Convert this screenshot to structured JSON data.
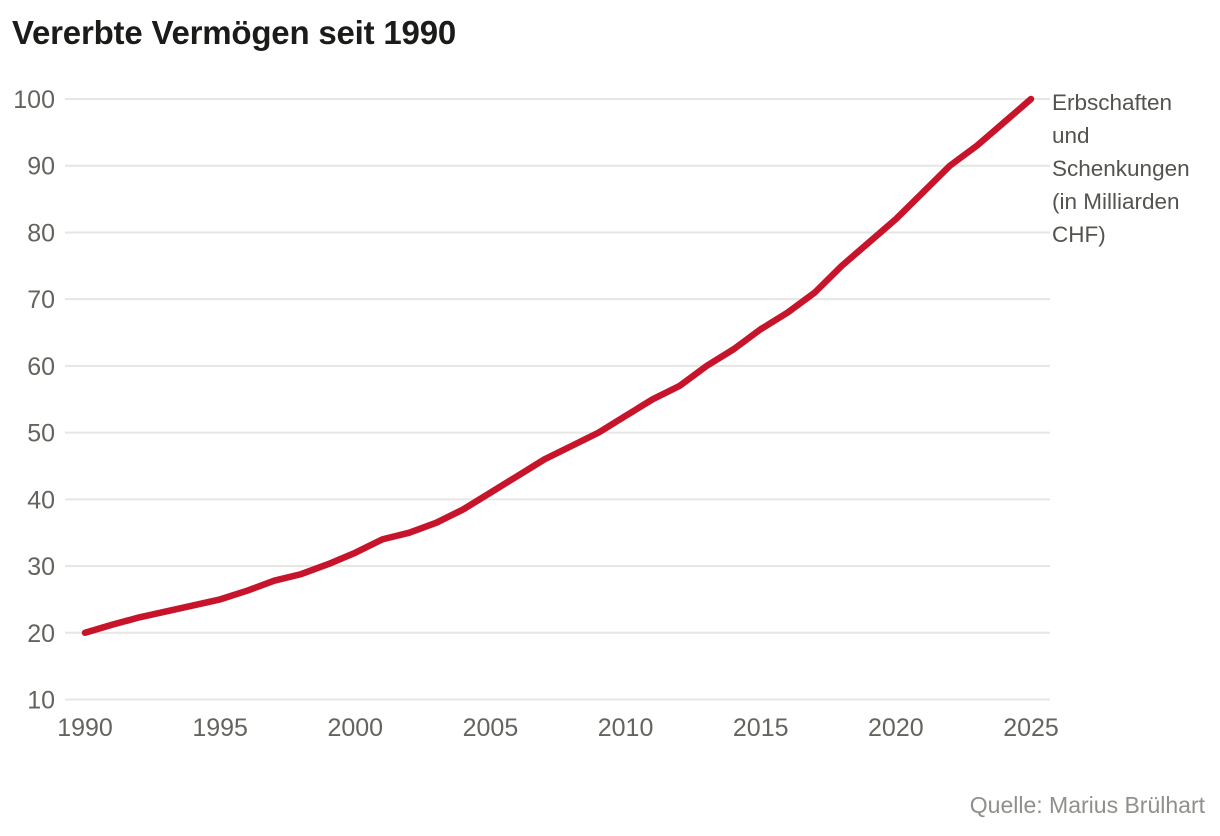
{
  "header": {
    "title": "Vererbte Vermögen seit 1990"
  },
  "legend": {
    "full_text": "Erbschaften und Schenkungen (in Milliarden CHF)",
    "lines": [
      "Erbschaften",
      "und",
      "Schenkungen",
      "(in Milliarden",
      "CHF)"
    ]
  },
  "source": {
    "text": "Quelle: Marius Brülhart"
  },
  "colors": {
    "line": "#c8142b",
    "grid": "#e6e6e3",
    "tick_label": "#64645f",
    "legend_text": "#53534f",
    "source_text": "#8f8f8b",
    "title_text": "#1b1b19"
  },
  "chart_data": {
    "type": "line",
    "title": "Vererbte Vermögen seit 1990",
    "series_name": "Erbschaften und Schenkungen (in Milliarden CHF)",
    "x": [
      1990,
      1991,
      1992,
      1993,
      1994,
      1995,
      1996,
      1997,
      1998,
      1999,
      2000,
      2001,
      2002,
      2003,
      2004,
      2005,
      2006,
      2007,
      2008,
      2009,
      2010,
      2011,
      2012,
      2013,
      2014,
      2015,
      2016,
      2017,
      2018,
      2019,
      2020,
      2021,
      2022,
      2023,
      2024,
      2025
    ],
    "values": [
      20,
      21.2,
      22.3,
      23.2,
      24.1,
      25,
      26.3,
      27.8,
      28.8,
      30.3,
      32,
      34,
      35,
      36.5,
      38.5,
      41,
      43.5,
      46,
      48,
      50,
      52.5,
      55,
      57,
      60,
      62.5,
      65.5,
      68,
      71,
      75,
      78.5,
      82,
      86,
      90,
      93,
      96.5,
      100
    ],
    "xlabel": "",
    "ylabel": "",
    "xlim": [
      1990,
      2025
    ],
    "ylim": [
      10,
      100
    ],
    "xticks": [
      1990,
      1995,
      2000,
      2005,
      2010,
      2015,
      2020,
      2025
    ],
    "yticks": [
      10,
      20,
      30,
      40,
      50,
      60,
      70,
      80,
      90,
      100
    ],
    "grid": true,
    "legend_position": "right-of-line-end"
  }
}
